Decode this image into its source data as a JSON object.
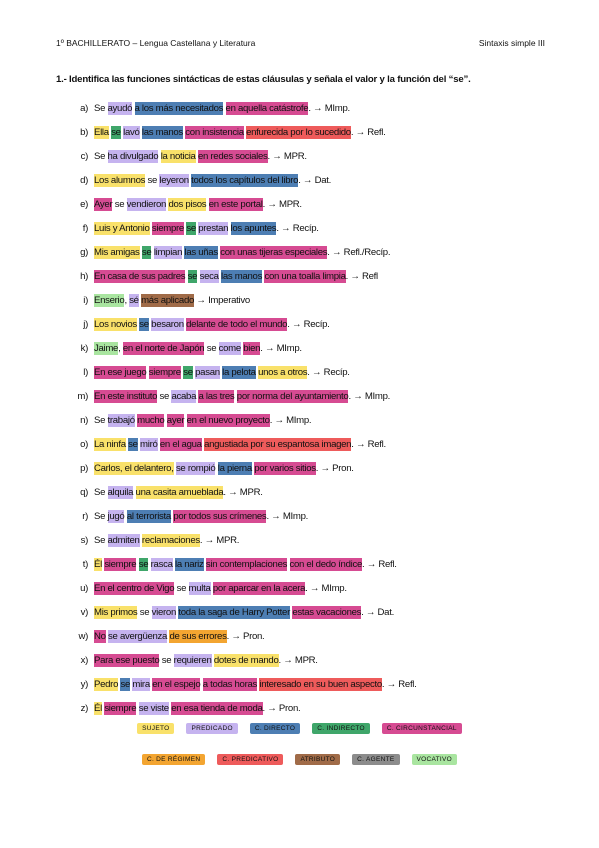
{
  "header": {
    "left": "1º BACHILLERATO – Lengua Castellana y Literatura",
    "right": "Sintaxis simple III"
  },
  "question": "1.- Identifica las funciones sintácticas de estas cláusulas y señala el valor y la función del “se”.",
  "items": [
    {
      "letter": "a)",
      "segments": [
        {
          "text": "Se"
        },
        {
          "text": "ayudó",
          "color": "#c5b3ef"
        },
        {
          "text": "a los más necesitados",
          "color": "#4d7eb3"
        },
        {
          "text": "en aquella catástrofe",
          "color": "#d64b92"
        }
      ],
      "result": ". → MImp."
    },
    {
      "letter": "b)",
      "segments": [
        {
          "text": "Ella",
          "color": "#f9e16a"
        },
        {
          "text": "se",
          "color": "#3fa66a"
        },
        {
          "text": "lavó",
          "color": "#c5b3ef"
        },
        {
          "text": "las manos",
          "color": "#4d7eb3"
        },
        {
          "text": "con insistencia",
          "color": "#d64b92"
        },
        {
          "text": "enfurecida por lo sucedido",
          "color": "#ee5b5b"
        }
      ],
      "result": ". → Refl."
    },
    {
      "letter": "c)",
      "segments": [
        {
          "text": "Se"
        },
        {
          "text": "ha divulgado",
          "color": "#c5b3ef"
        },
        {
          "text": "la noticia",
          "color": "#f9e16a"
        },
        {
          "text": "en redes sociales",
          "color": "#d64b92"
        }
      ],
      "result": ". → MPR."
    },
    {
      "letter": "d)",
      "segments": [
        {
          "text": "Los alumnos",
          "color": "#f9e16a"
        },
        {
          "text": "se"
        },
        {
          "text": "leyeron",
          "color": "#c5b3ef"
        },
        {
          "text": "todos los capítulos del libro",
          "color": "#4d7eb3"
        }
      ],
      "result": ". → Dat."
    },
    {
      "letter": "e)",
      "segments": [
        {
          "text": "Ayer",
          "color": "#d64b92"
        },
        {
          "text": "se"
        },
        {
          "text": "vendieron",
          "color": "#c5b3ef"
        },
        {
          "text": "dos pisos",
          "color": "#f9e16a"
        },
        {
          "text": "en este portal",
          "color": "#d64b92"
        }
      ],
      "result": ". → MPR."
    },
    {
      "letter": "f)",
      "segments": [
        {
          "text": "Luis y Antonio",
          "color": "#f9e16a"
        },
        {
          "text": "siempre",
          "color": "#d64b92"
        },
        {
          "text": "se",
          "color": "#3fa66a"
        },
        {
          "text": "prestan",
          "color": "#c5b3ef"
        },
        {
          "text": "los apuntes",
          "color": "#4d7eb3"
        }
      ],
      "result": ". → Recíp."
    },
    {
      "letter": "g)",
      "segments": [
        {
          "text": "Mis amigas",
          "color": "#f9e16a"
        },
        {
          "text": "se",
          "color": "#3fa66a"
        },
        {
          "text": "limpian",
          "color": "#c5b3ef"
        },
        {
          "text": "las uñas",
          "color": "#4d7eb3"
        },
        {
          "text": "con unas tijeras especiales",
          "color": "#d64b92"
        }
      ],
      "result": ". → Refl./Recíp."
    },
    {
      "letter": "h)",
      "segments": [
        {
          "text": "En casa de sus padres",
          "color": "#d64b92"
        },
        {
          "text": "se",
          "color": "#3fa66a"
        },
        {
          "text": "seca",
          "color": "#c5b3ef"
        },
        {
          "text": "las manos",
          "color": "#4d7eb3"
        },
        {
          "text": "con una toalla limpia",
          "color": "#d64b92"
        }
      ],
      "result": ". → Refl"
    },
    {
      "letter": "i)",
      "segments": [
        {
          "text": "Enserio",
          "color": "#a9e5a0"
        },
        {
          "text": ","
        },
        {
          "text": "sé",
          "color": "#c5b3ef"
        },
        {
          "text": "más aplicado",
          "color": "#a06b48"
        }
      ],
      "result": " → Imperativo"
    },
    {
      "letter": "j)",
      "segments": [
        {
          "text": "Los novios",
          "color": "#f9e16a"
        },
        {
          "text": "se",
          "color": "#4d7eb3"
        },
        {
          "text": "besaron",
          "color": "#c5b3ef"
        },
        {
          "text": "delante de todo el mundo",
          "color": "#d64b92"
        }
      ],
      "result": ". → Recíp."
    },
    {
      "letter": "k)",
      "segments": [
        {
          "text": "Jaime",
          "color": "#a9e5a0"
        },
        {
          "text": ","
        },
        {
          "text": "en el norte de Japón",
          "color": "#d64b92"
        },
        {
          "text": "se"
        },
        {
          "text": "come",
          "color": "#c5b3ef"
        },
        {
          "text": "bien",
          "color": "#d64b92"
        }
      ],
      "result": ". → MImp."
    },
    {
      "letter": "l)",
      "segments": [
        {
          "text": "En ese juego",
          "color": "#d64b92"
        },
        {
          "text": "siempre",
          "color": "#d64b92"
        },
        {
          "text": "se",
          "color": "#3fa66a"
        },
        {
          "text": "pasan",
          "color": "#c5b3ef"
        },
        {
          "text": "la pelota",
          "color": "#4d7eb3"
        },
        {
          "text": "unos a otros",
          "color": "#f9e16a"
        }
      ],
      "result": ". → Recíp."
    },
    {
      "letter": "m)",
      "segments": [
        {
          "text": "En este instituto",
          "color": "#d64b92"
        },
        {
          "text": "se"
        },
        {
          "text": "acaba",
          "color": "#c5b3ef"
        },
        {
          "text": "a las tres",
          "color": "#d64b92"
        },
        {
          "text": "por norma del ayuntamiento",
          "color": "#d64b92"
        }
      ],
      "result": ". → MImp."
    },
    {
      "letter": "n)",
      "segments": [
        {
          "text": "Se"
        },
        {
          "text": "trabajó",
          "color": "#c5b3ef"
        },
        {
          "text": "mucho",
          "color": "#d64b92"
        },
        {
          "text": "ayer",
          "color": "#d64b92"
        },
        {
          "text": "en el nuevo proyecto",
          "color": "#d64b92"
        }
      ],
      "result": ". → MImp."
    },
    {
      "letter": "o)",
      "segments": [
        {
          "text": "La ninfa",
          "color": "#f9e16a"
        },
        {
          "text": "se",
          "color": "#4d7eb3"
        },
        {
          "text": "miró",
          "color": "#c5b3ef"
        },
        {
          "text": "en el agua",
          "color": "#d64b92"
        },
        {
          "text": "angustiada por su espantosa imagen",
          "color": "#ee5b5b"
        }
      ],
      "result": ". → Refl."
    },
    {
      "letter": "p)",
      "segments": [
        {
          "text": "Carlos, el delantero,",
          "color": "#f9e16a"
        },
        {
          "text": "se rompió",
          "color": "#c5b3ef"
        },
        {
          "text": "la pierna",
          "color": "#4d7eb3"
        },
        {
          "text": "por varios sitios",
          "color": "#d64b92"
        }
      ],
      "result": ". → Pron."
    },
    {
      "letter": "q)",
      "segments": [
        {
          "text": "Se"
        },
        {
          "text": "alquila",
          "color": "#c5b3ef"
        },
        {
          "text": "una casita amueblada",
          "color": "#f9e16a"
        }
      ],
      "result": ". → MPR."
    },
    {
      "letter": "r)",
      "segments": [
        {
          "text": "Se"
        },
        {
          "text": "jugó",
          "color": "#c5b3ef"
        },
        {
          "text": "al terrorista",
          "color": "#4d7eb3"
        },
        {
          "text": "por todos sus crímenes",
          "color": "#d64b92"
        }
      ],
      "result": ". → MImp."
    },
    {
      "letter": "s)",
      "segments": [
        {
          "text": "Se"
        },
        {
          "text": "admiten",
          "color": "#c5b3ef"
        },
        {
          "text": "reclamaciones",
          "color": "#f9e16a"
        }
      ],
      "result": ". → MPR."
    },
    {
      "letter": "t)",
      "segments": [
        {
          "text": "Él",
          "color": "#f9e16a"
        },
        {
          "text": "siempre",
          "color": "#d64b92"
        },
        {
          "text": "se",
          "color": "#3fa66a"
        },
        {
          "text": "rasca",
          "color": "#c5b3ef"
        },
        {
          "text": "la nariz",
          "color": "#4d7eb3"
        },
        {
          "text": "sin contemplaciones",
          "color": "#d64b92"
        },
        {
          "text": "con el dedo índice",
          "color": "#d64b92"
        }
      ],
      "result": ". → Refl."
    },
    {
      "letter": "u)",
      "segments": [
        {
          "text": "En el centro de Vigo",
          "color": "#d64b92"
        },
        {
          "text": "se"
        },
        {
          "text": "multa",
          "color": "#c5b3ef"
        },
        {
          "text": "por aparcar en la acera",
          "color": "#d64b92"
        }
      ],
      "result": ". → MImp."
    },
    {
      "letter": "v)",
      "segments": [
        {
          "text": "Mis primos",
          "color": "#f9e16a"
        },
        {
          "text": "se"
        },
        {
          "text": "vieron",
          "color": "#c5b3ef"
        },
        {
          "text": "toda la saga de Harry Potter",
          "color": "#4d7eb3"
        },
        {
          "text": "estas vacaciones",
          "color": "#d64b92"
        }
      ],
      "result": ". → Dat."
    },
    {
      "letter": "w)",
      "segments": [
        {
          "text": "No",
          "color": "#d64b92"
        },
        {
          "text": "se avergüenza",
          "color": "#c5b3ef"
        },
        {
          "text": "de sus errores",
          "color": "#f3a531"
        }
      ],
      "result": ". → Pron."
    },
    {
      "letter": "x)",
      "segments": [
        {
          "text": "Para ese puesto",
          "color": "#d64b92"
        },
        {
          "text": "se"
        },
        {
          "text": "requieren",
          "color": "#c5b3ef"
        },
        {
          "text": "dotes de mando",
          "color": "#f9e16a"
        }
      ],
      "result": ". → MPR."
    },
    {
      "letter": "y)",
      "segments": [
        {
          "text": "Pedro",
          "color": "#f9e16a"
        },
        {
          "text": "se",
          "color": "#4d7eb3"
        },
        {
          "text": "mira",
          "color": "#c5b3ef"
        },
        {
          "text": "en el espejo",
          "color": "#d64b92"
        },
        {
          "text": "a todas horas",
          "color": "#d64b92"
        },
        {
          "text": "interesado en su buen aspecto",
          "color": "#ee5b5b"
        }
      ],
      "result": ". → Refl."
    },
    {
      "letter": "z)",
      "segments": [
        {
          "text": "Él",
          "color": "#f9e16a"
        },
        {
          "text": "siempre",
          "color": "#d64b92"
        },
        {
          "text": "se viste",
          "color": "#c5b3ef"
        },
        {
          "text": "en esa tienda de moda",
          "color": "#d64b92"
        }
      ],
      "result": ". → Pron."
    }
  ],
  "legend": [
    [
      {
        "label": "SUJETO",
        "color": "#f9e16a"
      },
      {
        "label": "PREDICADO",
        "color": "#c5b3ef"
      },
      {
        "label": "C. DIRECTO",
        "color": "#4d7eb3"
      },
      {
        "label": "C. INDIRECTO",
        "color": "#3fa66a"
      },
      {
        "label": "C. CIRCUNSTANCIAL",
        "color": "#d64b92"
      }
    ],
    [
      {
        "label": "C. DE RÉGIMEN",
        "color": "#f3a531"
      },
      {
        "label": "C. PREDICATIVO",
        "color": "#ee5b5b"
      },
      {
        "label": "ATRIBUTO",
        "color": "#a06b48"
      },
      {
        "label": "C. AGENTE",
        "color": "#8c8c8c"
      },
      {
        "label": "VOCATIVO",
        "color": "#a9e5a0"
      }
    ]
  ]
}
